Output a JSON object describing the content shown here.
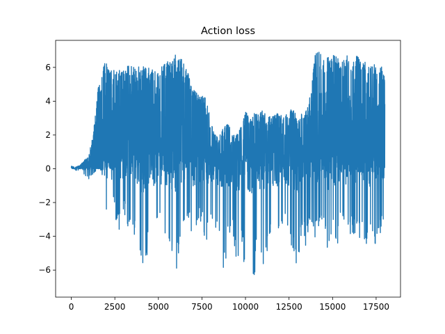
{
  "chart_data": {
    "type": "line",
    "title": "Action loss",
    "xlabel": "",
    "ylabel": "",
    "xlim": [
      -900,
      18900
    ],
    "ylim": [
      -7.6,
      7.6
    ],
    "x_ticks": [
      0,
      2500,
      5000,
      7500,
      10000,
      12500,
      15000,
      17500
    ],
    "x_tick_labels": [
      "0",
      "2500",
      "5000",
      "7500",
      "10000",
      "12500",
      "15000",
      "17500"
    ],
    "y_ticks": [
      -6,
      -4,
      -2,
      0,
      2,
      4,
      6
    ],
    "y_tick_labels": [
      "−6",
      "−4",
      "−2",
      "0",
      "2",
      "4",
      "6"
    ],
    "grid": false,
    "legend": "none",
    "series_color": "#1f77b4",
    "series": [
      {
        "x_start": 0,
        "x_end": 18000,
        "envelope_step": 250,
        "envelope_high": [
          0.15,
          0.1,
          0.2,
          0.5,
          0.8,
          2.0,
          4.6,
          6.1,
          6.3,
          6.0,
          6.0,
          6.0,
          6.0,
          6.1,
          6.1,
          6.2,
          6.1,
          6.4,
          6.0,
          6.0,
          6.1,
          6.3,
          6.3,
          6.6,
          6.9,
          6.9,
          6.3,
          5.6,
          4.8,
          4.4,
          4.3,
          4.2,
          2.8,
          2.0,
          2.0,
          2.5,
          2.8,
          2.0,
          2.0,
          2.6,
          3.4,
          3.0,
          3.3,
          3.2,
          3.5,
          3.0,
          3.2,
          3.3,
          3.2,
          3.0,
          3.6,
          3.5,
          3.0,
          3.3,
          3.5,
          4.8,
          6.9,
          6.9,
          6.5,
          6.7,
          6.8,
          6.8,
          6.6,
          6.9,
          6.5,
          6.5,
          6.8,
          6.4,
          6.4,
          6.3,
          6.1,
          6.2,
          5.7
        ],
        "envelope_low": [
          -0.05,
          -0.1,
          -0.1,
          -0.4,
          -0.6,
          -0.3,
          -0.1,
          -0.1,
          -3.2,
          -0.1,
          -2.8,
          -3.9,
          -2.5,
          -3.6,
          -3.2,
          -4.8,
          -5.8,
          -5.6,
          -4.5,
          -4.0,
          -3.5,
          -4.0,
          -4.2,
          -4.9,
          -6.0,
          -5.5,
          -3.0,
          -3.2,
          -4.9,
          -3.5,
          -3.0,
          -5.2,
          -2.8,
          -3.8,
          -3.8,
          -6.4,
          -4.5,
          -3.5,
          -6.8,
          -4.8,
          -6.7,
          -5.5,
          -6.6,
          -5.2,
          -5.8,
          -5.0,
          -3.8,
          -5.8,
          -3.5,
          -3.6,
          -4.5,
          -5.5,
          -6.0,
          -3.5,
          -5.0,
          -3.3,
          -4.1,
          -4.0,
          -3.2,
          -5.2,
          -4.2,
          -4.8,
          -3.2,
          -3.8,
          -4.0,
          -4.0,
          -4.0,
          -4.5,
          -4.4,
          -4.2,
          -4.5,
          -3.8,
          -2.6
        ]
      }
    ]
  }
}
